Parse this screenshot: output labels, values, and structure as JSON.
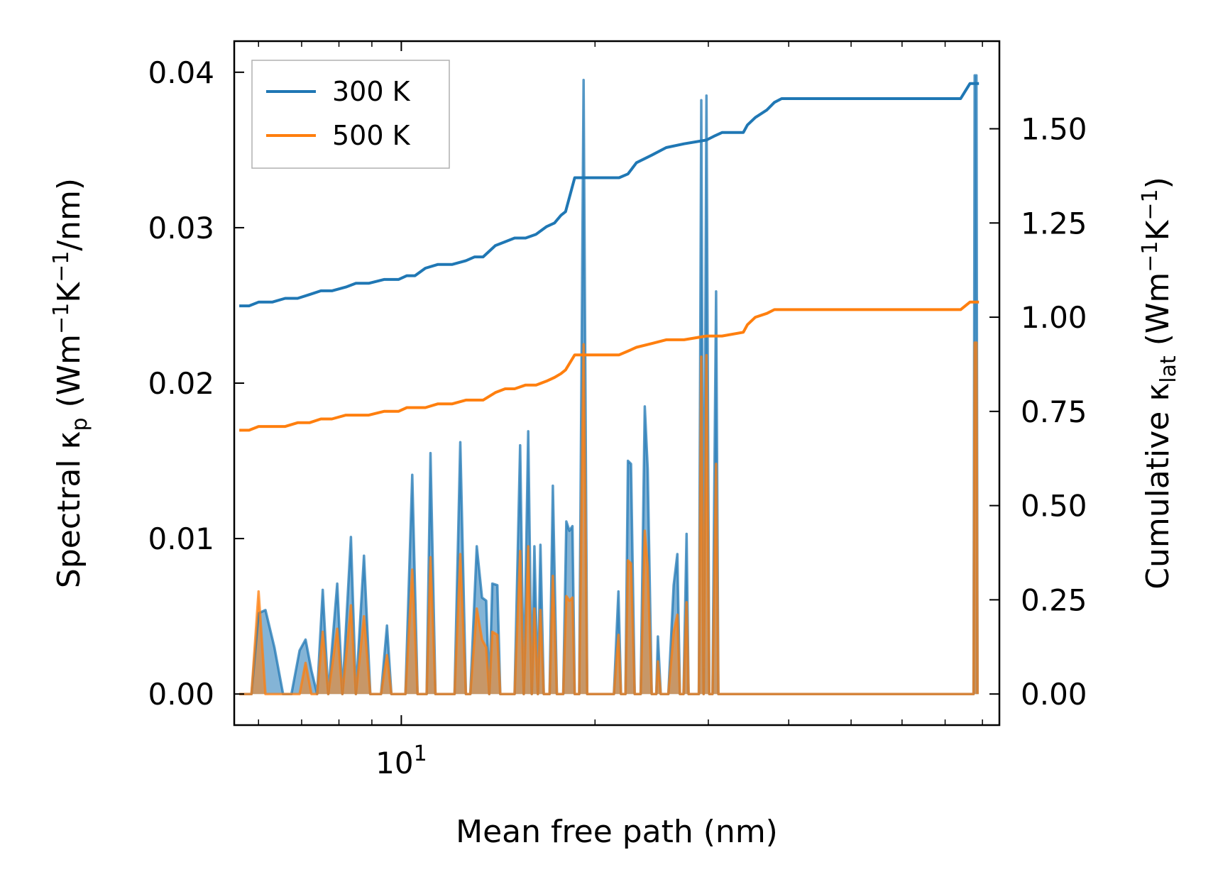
{
  "chart_data": {
    "type": "line",
    "xlabel": "Mean free path (nm)",
    "xscale": "log",
    "xlim": [
      5.5,
      85
    ],
    "x_tick_labels": [
      {
        "value": 10,
        "label": "10",
        "exponent": "1"
      }
    ],
    "left_axis": {
      "label_parts": [
        "Spectral κ",
        "p",
        " (Wm",
        "−1",
        "K",
        "−1",
        "/nm)"
      ],
      "ylim": [
        -0.002,
        0.042
      ],
      "ticks": [
        0.0,
        0.01,
        0.02,
        0.03,
        0.04
      ],
      "tick_labels": [
        "0.00",
        "0.01",
        "0.02",
        "0.03",
        "0.04"
      ]
    },
    "right_axis": {
      "label_parts": [
        "Cumulative κ",
        "lat",
        " (Wm",
        "−1",
        "K",
        "−1",
        ")"
      ],
      "ylim": [
        -0.0825,
        1.7325
      ],
      "ticks": [
        0.0,
        0.25,
        0.5,
        0.75,
        1.0,
        1.25,
        1.5
      ],
      "tick_labels": [
        "0.00",
        "0.25",
        "0.50",
        "0.75",
        "1.00",
        "1.25",
        "1.50"
      ]
    },
    "legend": {
      "position": "top-left",
      "entries": [
        {
          "label": "300 K",
          "color": "#1f77b4"
        },
        {
          "label": "500 K",
          "color": "#ff7f0e"
        }
      ]
    },
    "series": [
      {
        "name": "300 K",
        "color": "#1f77b4",
        "cumulative": [
          [
            5.6,
            1.03
          ],
          [
            5.8,
            1.03
          ],
          [
            6.0,
            1.04
          ],
          [
            6.3,
            1.04
          ],
          [
            6.6,
            1.05
          ],
          [
            6.9,
            1.05
          ],
          [
            7.2,
            1.06
          ],
          [
            7.5,
            1.07
          ],
          [
            7.8,
            1.07
          ],
          [
            8.2,
            1.08
          ],
          [
            8.5,
            1.09
          ],
          [
            8.9,
            1.09
          ],
          [
            9.4,
            1.1
          ],
          [
            9.9,
            1.1
          ],
          [
            10.2,
            1.11
          ],
          [
            10.5,
            1.11
          ],
          [
            10.9,
            1.13
          ],
          [
            11.4,
            1.14
          ],
          [
            12.0,
            1.14
          ],
          [
            12.6,
            1.15
          ],
          [
            13.0,
            1.16
          ],
          [
            13.4,
            1.16
          ],
          [
            14.0,
            1.19
          ],
          [
            14.5,
            1.2
          ],
          [
            15.0,
            1.21
          ],
          [
            15.6,
            1.21
          ],
          [
            16.2,
            1.22
          ],
          [
            16.8,
            1.24
          ],
          [
            17.3,
            1.25
          ],
          [
            17.7,
            1.27
          ],
          [
            18.0,
            1.28
          ],
          [
            18.6,
            1.37
          ],
          [
            19.1,
            1.37
          ],
          [
            21.8,
            1.37
          ],
          [
            22.5,
            1.38
          ],
          [
            23.2,
            1.41
          ],
          [
            24.5,
            1.43
          ],
          [
            25.8,
            1.45
          ],
          [
            27.5,
            1.46
          ],
          [
            29.8,
            1.47
          ],
          [
            30.6,
            1.48
          ],
          [
            31.5,
            1.49
          ],
          [
            34.0,
            1.49
          ],
          [
            34.5,
            1.51
          ],
          [
            35.5,
            1.53
          ],
          [
            37.0,
            1.55
          ],
          [
            38.0,
            1.57
          ],
          [
            39.0,
            1.58
          ],
          [
            74.0,
            1.58
          ],
          [
            76.5,
            1.62
          ],
          [
            79.0,
            1.62
          ]
        ],
        "spectral": [
          [
            5.6,
            0.0
          ],
          [
            5.85,
            0.0
          ],
          [
            6.0,
            0.0052
          ],
          [
            6.15,
            0.0054
          ],
          [
            6.35,
            0.003
          ],
          [
            6.55,
            0.0
          ],
          [
            6.75,
            0.0
          ],
          [
            6.95,
            0.0028
          ],
          [
            7.1,
            0.0035
          ],
          [
            7.25,
            0.0015
          ],
          [
            7.4,
            0.0
          ],
          [
            7.55,
            0.0067
          ],
          [
            7.7,
            0.0
          ],
          [
            7.95,
            0.0071
          ],
          [
            8.1,
            0.0
          ],
          [
            8.35,
            0.0101
          ],
          [
            8.5,
            0.0
          ],
          [
            8.75,
            0.0089
          ],
          [
            8.95,
            0.0
          ],
          [
            9.3,
            0.0
          ],
          [
            9.5,
            0.0044
          ],
          [
            9.65,
            0.0
          ],
          [
            10.15,
            0.0
          ],
          [
            10.4,
            0.0141
          ],
          [
            10.6,
            0.0
          ],
          [
            10.95,
            0.0
          ],
          [
            11.1,
            0.0155
          ],
          [
            11.3,
            0.0
          ],
          [
            12.1,
            0.0
          ],
          [
            12.35,
            0.0162
          ],
          [
            12.6,
            0.0
          ],
          [
            12.8,
            0.0
          ],
          [
            13.1,
            0.0095
          ],
          [
            13.35,
            0.0062
          ],
          [
            13.55,
            0.006
          ],
          [
            13.7,
            0.0
          ],
          [
            13.85,
            0.0071
          ],
          [
            14.1,
            0.007
          ],
          [
            14.25,
            0.0
          ],
          [
            15.0,
            0.0
          ],
          [
            15.3,
            0.016
          ],
          [
            15.5,
            0.0
          ],
          [
            15.75,
            0.0169
          ],
          [
            15.95,
            0.0
          ],
          [
            16.1,
            0.0095
          ],
          [
            16.3,
            0.0
          ],
          [
            16.45,
            0.0096
          ],
          [
            16.65,
            0.0
          ],
          [
            17.0,
            0.0
          ],
          [
            17.2,
            0.0134
          ],
          [
            17.45,
            0.0
          ],
          [
            17.85,
            0.0
          ],
          [
            18.05,
            0.0111
          ],
          [
            18.25,
            0.0105
          ],
          [
            18.45,
            0.0108
          ],
          [
            18.6,
            0.0
          ],
          [
            18.9,
            0.0
          ],
          [
            19.2,
            0.0395
          ],
          [
            19.45,
            0.0
          ],
          [
            21.4,
            0.0
          ],
          [
            21.75,
            0.0066
          ],
          [
            21.95,
            0.0
          ],
          [
            22.3,
            0.0
          ],
          [
            22.5,
            0.015
          ],
          [
            22.75,
            0.0148
          ],
          [
            23.05,
            0.0
          ],
          [
            23.55,
            0.0
          ],
          [
            23.9,
            0.0185
          ],
          [
            24.15,
            0.0145
          ],
          [
            24.5,
            0.0
          ],
          [
            24.9,
            0.0
          ],
          [
            25.05,
            0.0037
          ],
          [
            25.3,
            0.0
          ],
          [
            26.0,
            0.0
          ],
          [
            26.5,
            0.007
          ],
          [
            26.85,
            0.009
          ],
          [
            27.1,
            0.0
          ],
          [
            27.45,
            0.0
          ],
          [
            27.75,
            0.0103
          ],
          [
            27.95,
            0.0
          ],
          [
            29.0,
            0.0
          ],
          [
            29.25,
            0.0382
          ],
          [
            29.5,
            0.0
          ],
          [
            29.8,
            0.0385
          ],
          [
            30.1,
            0.0
          ],
          [
            30.45,
            0.0
          ],
          [
            30.85,
            0.0259
          ],
          [
            31.1,
            0.0
          ],
          [
            77.5,
            0.0
          ],
          [
            77.8,
            0.0398
          ],
          [
            78.3,
            0.0398
          ],
          [
            78.6,
            0.0
          ]
        ]
      },
      {
        "name": "500 K",
        "color": "#ff7f0e",
        "cumulative": [
          [
            5.6,
            0.7
          ],
          [
            5.8,
            0.7
          ],
          [
            6.0,
            0.71
          ],
          [
            6.6,
            0.71
          ],
          [
            6.9,
            0.72
          ],
          [
            7.2,
            0.72
          ],
          [
            7.5,
            0.73
          ],
          [
            7.8,
            0.73
          ],
          [
            8.2,
            0.74
          ],
          [
            8.9,
            0.74
          ],
          [
            9.4,
            0.75
          ],
          [
            9.9,
            0.75
          ],
          [
            10.2,
            0.76
          ],
          [
            10.9,
            0.76
          ],
          [
            11.4,
            0.77
          ],
          [
            12.0,
            0.77
          ],
          [
            12.6,
            0.78
          ],
          [
            13.4,
            0.78
          ],
          [
            14.0,
            0.8
          ],
          [
            14.5,
            0.81
          ],
          [
            15.0,
            0.81
          ],
          [
            15.6,
            0.82
          ],
          [
            16.2,
            0.82
          ],
          [
            16.8,
            0.83
          ],
          [
            17.3,
            0.84
          ],
          [
            17.7,
            0.85
          ],
          [
            18.0,
            0.86
          ],
          [
            18.6,
            0.9
          ],
          [
            19.1,
            0.9
          ],
          [
            21.8,
            0.9
          ],
          [
            22.5,
            0.91
          ],
          [
            23.2,
            0.92
          ],
          [
            24.5,
            0.93
          ],
          [
            25.8,
            0.94
          ],
          [
            27.5,
            0.94
          ],
          [
            29.8,
            0.95
          ],
          [
            30.6,
            0.95
          ],
          [
            31.5,
            0.95
          ],
          [
            34.0,
            0.96
          ],
          [
            34.5,
            0.98
          ],
          [
            35.5,
            1.0
          ],
          [
            37.0,
            1.01
          ],
          [
            38.0,
            1.02
          ],
          [
            39.0,
            1.02
          ],
          [
            74.0,
            1.02
          ],
          [
            76.5,
            1.04
          ],
          [
            79.0,
            1.04
          ]
        ],
        "spectral": [
          [
            5.6,
            0.0
          ],
          [
            5.85,
            0.0
          ],
          [
            6.0,
            0.0066
          ],
          [
            6.15,
            0.0
          ],
          [
            6.35,
            0.0
          ],
          [
            6.95,
            0.0
          ],
          [
            7.1,
            0.002
          ],
          [
            7.25,
            0.0
          ],
          [
            7.4,
            0.0
          ],
          [
            7.55,
            0.004
          ],
          [
            7.7,
            0.0
          ],
          [
            7.95,
            0.0042
          ],
          [
            8.1,
            0.0
          ],
          [
            8.35,
            0.0057
          ],
          [
            8.5,
            0.0
          ],
          [
            8.75,
            0.005
          ],
          [
            8.95,
            0.0
          ],
          [
            9.3,
            0.0
          ],
          [
            9.5,
            0.0025
          ],
          [
            9.65,
            0.0
          ],
          [
            10.15,
            0.0
          ],
          [
            10.4,
            0.008
          ],
          [
            10.6,
            0.0
          ],
          [
            10.95,
            0.0
          ],
          [
            11.1,
            0.0088
          ],
          [
            11.3,
            0.0
          ],
          [
            12.1,
            0.0
          ],
          [
            12.35,
            0.009
          ],
          [
            12.6,
            0.0
          ],
          [
            12.8,
            0.0
          ],
          [
            13.1,
            0.0055
          ],
          [
            13.35,
            0.0035
          ],
          [
            13.55,
            0.003
          ],
          [
            13.7,
            0.0
          ],
          [
            13.85,
            0.004
          ],
          [
            14.1,
            0.0038
          ],
          [
            14.25,
            0.0
          ],
          [
            15.0,
            0.0
          ],
          [
            15.3,
            0.0092
          ],
          [
            15.5,
            0.0
          ],
          [
            15.75,
            0.0095
          ],
          [
            15.95,
            0.0
          ],
          [
            16.1,
            0.0055
          ],
          [
            16.3,
            0.0
          ],
          [
            16.45,
            0.0054
          ],
          [
            16.65,
            0.0
          ],
          [
            17.0,
            0.0
          ],
          [
            17.2,
            0.0076
          ],
          [
            17.45,
            0.0
          ],
          [
            17.85,
            0.0
          ],
          [
            18.05,
            0.0063
          ],
          [
            18.25,
            0.006
          ],
          [
            18.45,
            0.0062
          ],
          [
            18.6,
            0.0
          ],
          [
            18.9,
            0.0
          ],
          [
            19.2,
            0.0225
          ],
          [
            19.45,
            0.0
          ],
          [
            21.4,
            0.0
          ],
          [
            21.75,
            0.0038
          ],
          [
            21.95,
            0.0
          ],
          [
            22.3,
            0.0
          ],
          [
            22.5,
            0.0086
          ],
          [
            22.75,
            0.0084
          ],
          [
            23.05,
            0.0
          ],
          [
            23.55,
            0.0
          ],
          [
            23.9,
            0.0105
          ],
          [
            24.15,
            0.0082
          ],
          [
            24.5,
            0.0
          ],
          [
            24.9,
            0.0
          ],
          [
            25.05,
            0.0021
          ],
          [
            25.3,
            0.0
          ],
          [
            26.0,
            0.0
          ],
          [
            26.5,
            0.004
          ],
          [
            26.85,
            0.0051
          ],
          [
            27.1,
            0.0
          ],
          [
            27.45,
            0.0
          ],
          [
            27.75,
            0.0059
          ],
          [
            27.95,
            0.0
          ],
          [
            29.0,
            0.0
          ],
          [
            29.25,
            0.0217
          ],
          [
            29.5,
            0.0
          ],
          [
            29.8,
            0.0218
          ],
          [
            30.1,
            0.0
          ],
          [
            30.45,
            0.0
          ],
          [
            30.85,
            0.0148
          ],
          [
            31.1,
            0.0
          ],
          [
            77.5,
            0.0
          ],
          [
            77.8,
            0.0226
          ],
          [
            78.3,
            0.0226
          ],
          [
            78.6,
            0.0
          ]
        ]
      }
    ]
  }
}
